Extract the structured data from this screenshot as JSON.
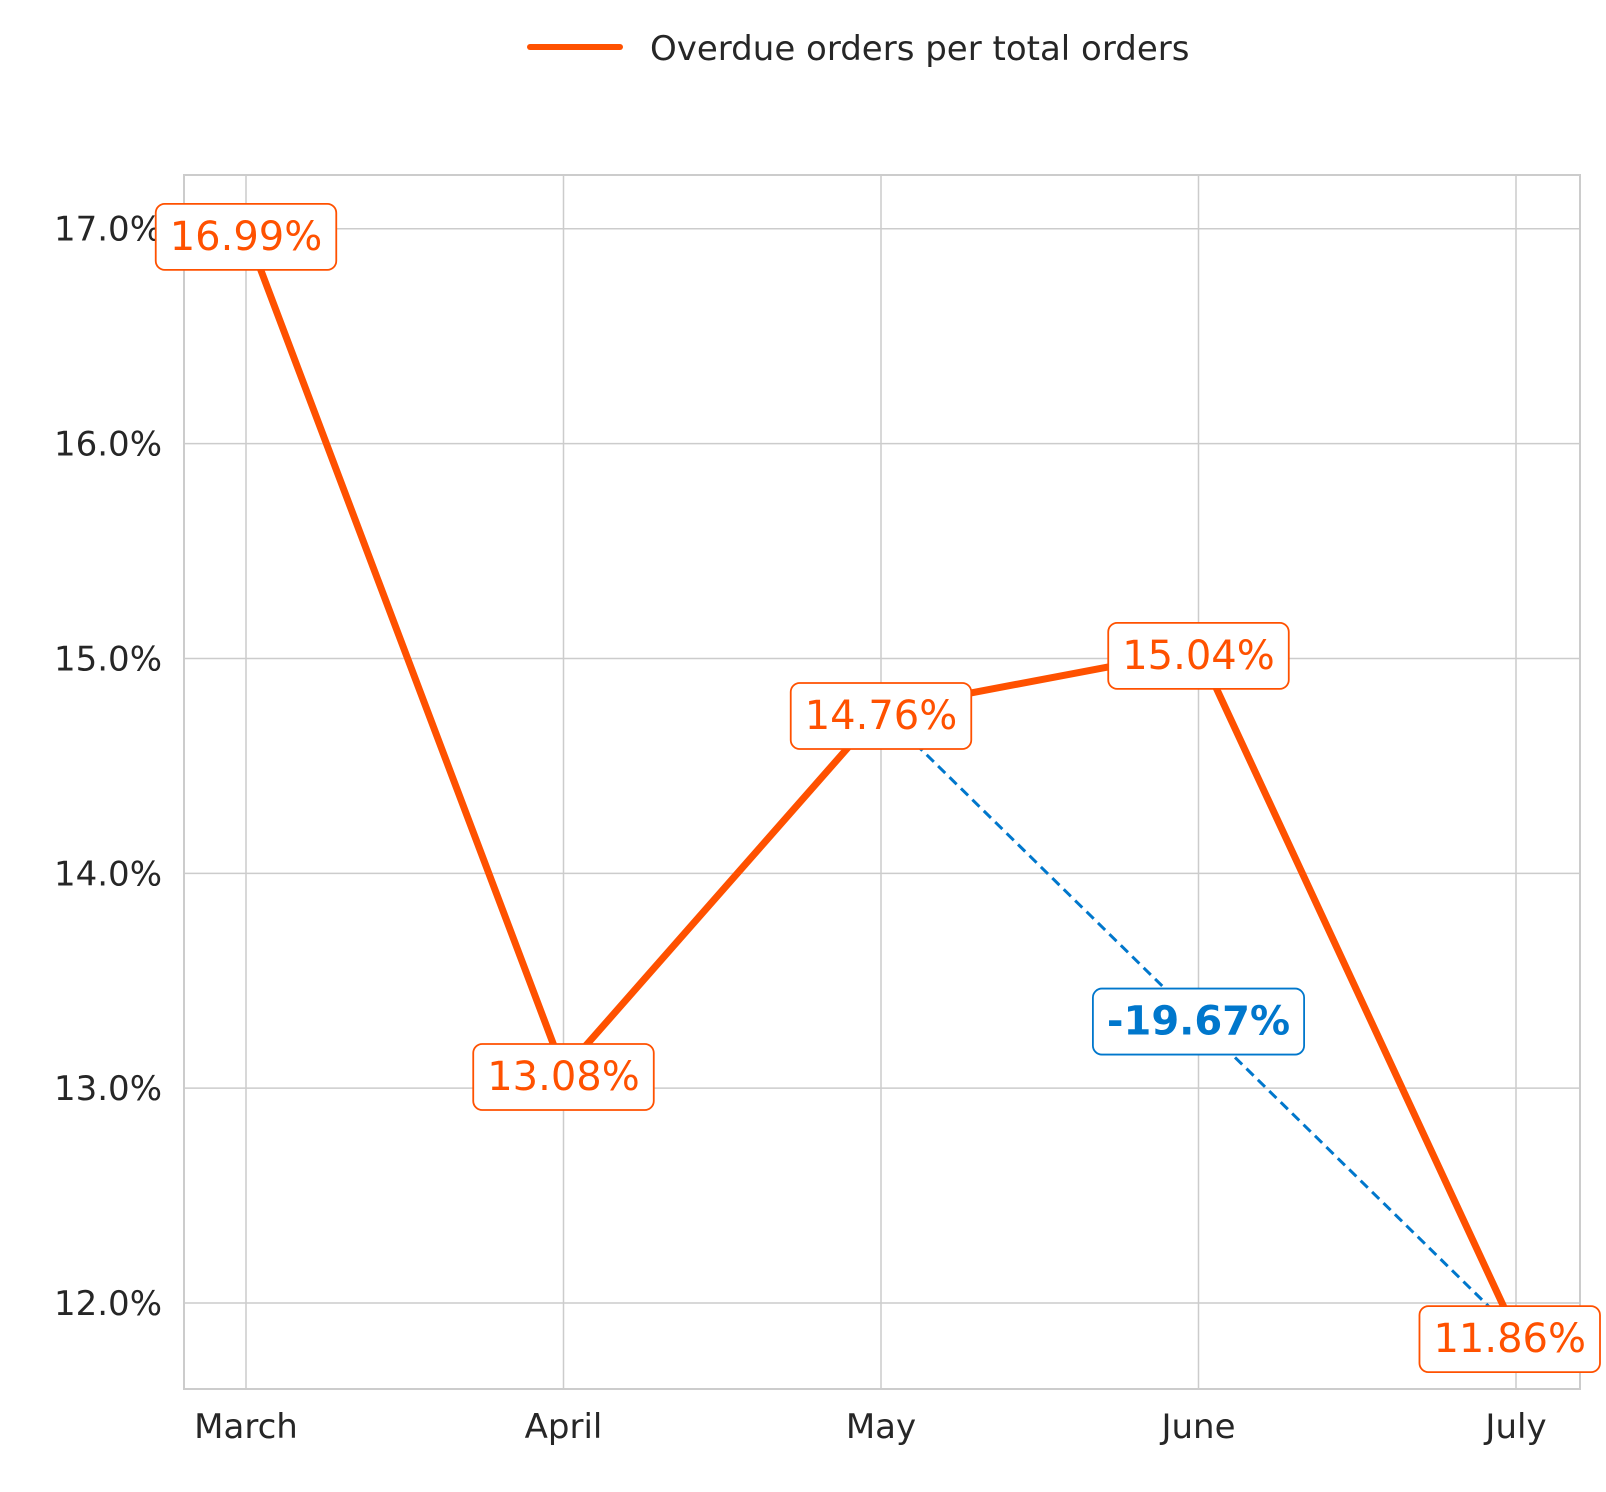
{
  "chart_data": {
    "type": "line",
    "categories": [
      "March",
      "April",
      "May",
      "June",
      "July"
    ],
    "series": [
      {
        "name": "Overdue orders per total orders",
        "values": [
          16.99,
          13.08,
          14.76,
          15.04,
          11.86
        ],
        "labels": [
          "16.99%",
          "13.08%",
          "14.76%",
          "15.04%",
          "11.86%"
        ],
        "color": "#ff5100"
      }
    ],
    "yticks": [
      12.0,
      13.0,
      14.0,
      15.0,
      16.0,
      17.0
    ],
    "ytick_labels": [
      "12.0%",
      "13.0%",
      "14.0%",
      "15.0%",
      "16.0%",
      "17.0%"
    ],
    "ylim": [
      11.6,
      17.25
    ],
    "grid": true,
    "legend_position": "top-center",
    "annotation": {
      "from_category": "May",
      "to_category": "July",
      "label": "-19.67%",
      "color": "#0077cc",
      "style": "dashed"
    }
  }
}
